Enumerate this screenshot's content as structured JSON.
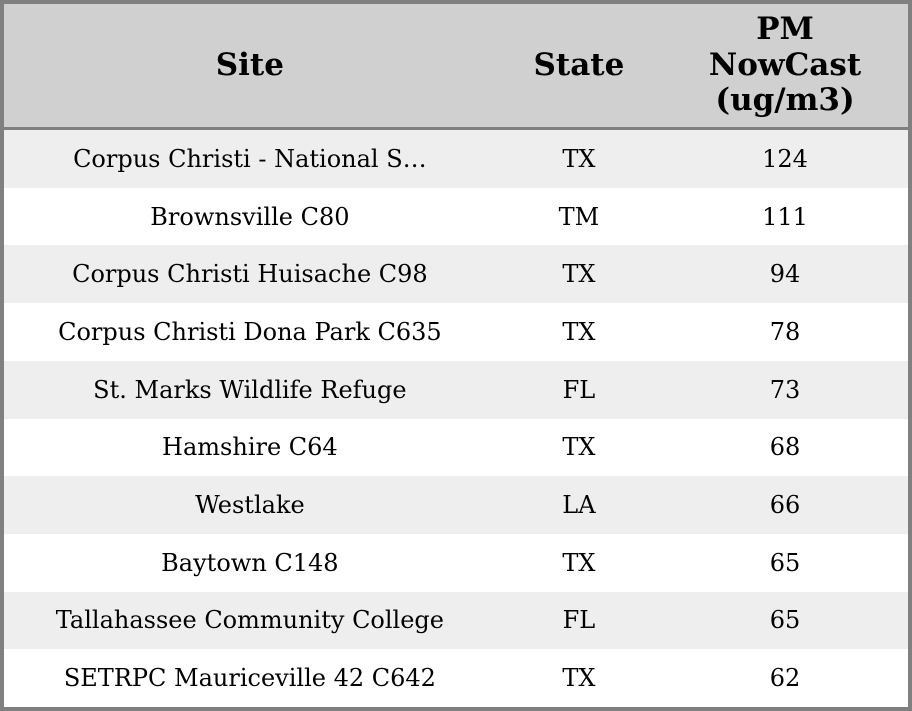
{
  "chart_data": {
    "type": "table",
    "columns": [
      {
        "id": "site",
        "label": "Site"
      },
      {
        "id": "state",
        "label": "State"
      },
      {
        "id": "pm_nowcast",
        "label": "PM NowCast (ug/m3)"
      }
    ],
    "rows": [
      {
        "site": "Corpus Christi - National S…",
        "state": "TX",
        "pm_nowcast": 124
      },
      {
        "site": "Brownsville C80",
        "state": "TM",
        "pm_nowcast": 111
      },
      {
        "site": "Corpus Christi Huisache C98",
        "state": "TX",
        "pm_nowcast": 94
      },
      {
        "site": "Corpus Christi Dona Park C635",
        "state": "TX",
        "pm_nowcast": 78
      },
      {
        "site": "St. Marks Wildlife Refuge",
        "state": "FL",
        "pm_nowcast": 73
      },
      {
        "site": "Hamshire C64",
        "state": "TX",
        "pm_nowcast": 68
      },
      {
        "site": "Westlake",
        "state": "LA",
        "pm_nowcast": 66
      },
      {
        "site": "Baytown C148",
        "state": "TX",
        "pm_nowcast": 65
      },
      {
        "site": "Tallahassee Community College",
        "state": "FL",
        "pm_nowcast": 65
      },
      {
        "site": "SETRPC Mauriceville 42 C642",
        "state": "TX",
        "pm_nowcast": 62
      }
    ]
  },
  "colors": {
    "outer_border": "#808080",
    "header_bg": "#d0d0d0",
    "row_bg": "#ffffff",
    "row_alt_bg": "#eeeeee",
    "text": "#000000"
  }
}
